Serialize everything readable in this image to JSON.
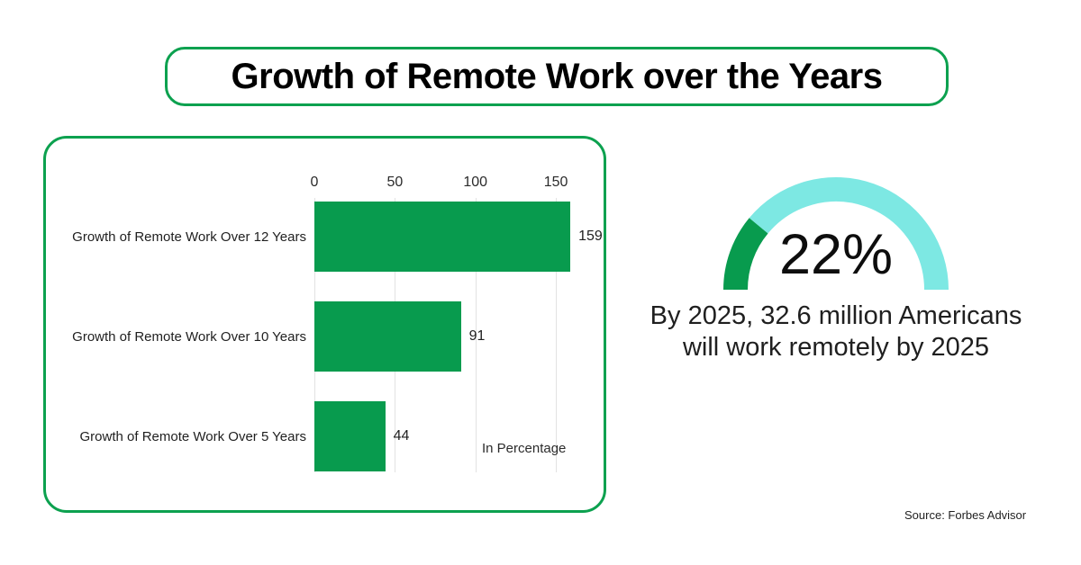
{
  "title": "Growth of Remote Work over the Years",
  "chart_data": {
    "type": "bar",
    "orientation": "horizontal",
    "title": "",
    "categories": [
      "Growth of Remote Work Over 12 Years",
      "Growth of Remote Work Over 10 Years",
      "Growth of Remote Work Over 5 Years"
    ],
    "values": [
      159,
      91,
      44
    ],
    "data_labels": [
      "159",
      "91",
      "44"
    ],
    "ticks": [
      0,
      50,
      100,
      150
    ],
    "tick_labels": [
      "0",
      "50",
      "100",
      "150"
    ],
    "xlim": [
      0,
      168
    ],
    "grid": true,
    "unit_note": "In Percentage",
    "bar_color": "#089b4e"
  },
  "gauge": {
    "type": "semicircle-donut",
    "percent": 22,
    "value_label": "22%",
    "filled_color": "#089b4e",
    "track_color": "#7de8e3"
  },
  "caption": {
    "line1": "By 2025, 32.6 million Americans",
    "line2": "will work remotely by 2025"
  },
  "source": "Source: Forbes Advisor",
  "colors": {
    "accent_green": "#089b4e",
    "light_cyan": "#7de8e3",
    "border_green": "#0ca14f",
    "gridline": "#e2e2e2",
    "text": "#1a1a1a"
  }
}
